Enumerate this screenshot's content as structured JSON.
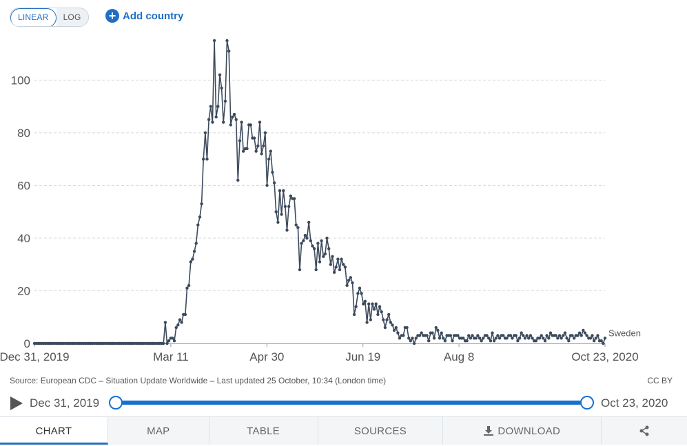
{
  "controls": {
    "linear_label": "LINEAR",
    "log_label": "LOG",
    "add_country_label": "Add country"
  },
  "footer": {
    "source": "Source: European CDC – Situation Update Worldwide – Last updated 25 October, 10:34 (London time)",
    "license": "CC BY"
  },
  "timeline": {
    "start_label": "Dec 31, 2019",
    "end_label": "Oct 23, 2020"
  },
  "tabs": {
    "chart": "CHART",
    "map": "MAP",
    "table": "TABLE",
    "sources": "SOURCES",
    "download": "DOWNLOAD"
  },
  "colors": {
    "series": "#3c4a5c",
    "accent": "#1f6fc5",
    "grid": "#d8d8d8"
  },
  "chart_data": {
    "type": "line",
    "x_start": "2019-12-31",
    "x_end": "2020-10-23",
    "ylim": [
      0,
      115
    ],
    "yticks": [
      0,
      20,
      40,
      60,
      80,
      100
    ],
    "xtick_labels": [
      "Dec 31, 2019",
      "Mar 11",
      "Apr 30",
      "Jun 19",
      "Aug 8",
      "Oct 23, 2020"
    ],
    "xtick_dates": [
      "2019-12-31",
      "2020-03-11",
      "2020-04-30",
      "2020-06-19",
      "2020-08-08",
      "2020-10-23"
    ],
    "grid": true,
    "series": [
      {
        "name": "Sweden",
        "values": [
          0,
          0,
          0,
          0,
          0,
          0,
          0,
          0,
          0,
          0,
          0,
          0,
          0,
          0,
          0,
          0,
          0,
          0,
          0,
          0,
          0,
          0,
          0,
          0,
          0,
          0,
          0,
          0,
          0,
          0,
          0,
          0,
          0,
          0,
          0,
          0,
          0,
          0,
          0,
          0,
          0,
          0,
          0,
          0,
          0,
          0,
          0,
          0,
          0,
          0,
          0,
          0,
          0,
          0,
          0,
          0,
          0,
          0,
          0,
          0,
          0,
          0,
          0,
          0,
          0,
          0,
          0,
          0,
          0,
          0,
          0,
          0,
          8,
          0,
          1,
          2,
          2,
          1,
          6,
          7,
          9,
          8,
          11,
          11,
          21,
          22,
          31,
          32,
          35,
          38,
          45,
          48,
          53,
          70,
          80,
          70,
          85,
          90,
          84,
          115,
          86,
          90,
          102,
          97,
          84,
          92,
          115,
          111,
          83,
          86,
          87,
          85,
          62,
          77,
          84,
          73,
          74,
          74,
          83,
          83,
          78,
          78,
          73,
          75,
          84,
          72,
          75,
          80,
          60,
          70,
          73,
          65,
          61,
          50,
          46,
          58,
          49,
          58,
          52,
          43,
          52,
          56,
          55,
          55,
          45,
          44,
          28,
          38,
          39,
          41,
          40,
          46,
          39,
          37,
          36,
          28,
          38,
          31,
          39,
          33,
          34,
          40,
          36,
          30,
          33,
          27,
          29,
          32,
          28,
          32,
          30,
          29,
          22,
          24,
          25,
          23,
          11,
          14,
          19,
          21,
          19,
          15,
          16,
          8,
          15,
          9,
          15,
          13,
          15,
          11,
          14,
          12,
          9,
          6,
          9,
          11,
          8,
          7,
          5,
          6,
          4,
          2,
          3,
          3,
          6,
          6,
          2,
          1,
          2,
          0,
          2,
          3,
          3,
          4,
          3,
          3,
          3,
          1,
          4,
          4,
          2,
          6,
          5,
          2,
          4,
          2,
          1,
          3,
          3,
          3,
          1,
          3,
          3,
          3,
          2,
          2,
          2,
          1,
          1,
          3,
          2,
          3,
          2,
          2,
          3,
          2,
          1,
          2,
          3,
          3,
          2,
          1,
          4,
          1,
          2,
          3,
          2,
          3,
          3,
          2,
          2,
          3,
          3,
          2,
          3,
          3,
          1,
          2,
          4,
          3,
          2,
          3,
          2,
          3,
          2,
          1,
          1,
          2,
          2,
          3,
          2,
          1,
          3,
          2,
          4,
          3,
          3,
          3,
          2,
          3,
          2,
          3,
          4,
          2,
          1,
          3,
          3,
          2,
          3,
          3,
          4,
          3,
          5,
          4,
          3,
          2,
          2,
          3,
          1,
          2,
          3,
          1,
          1,
          0,
          2
        ]
      }
    ]
  }
}
